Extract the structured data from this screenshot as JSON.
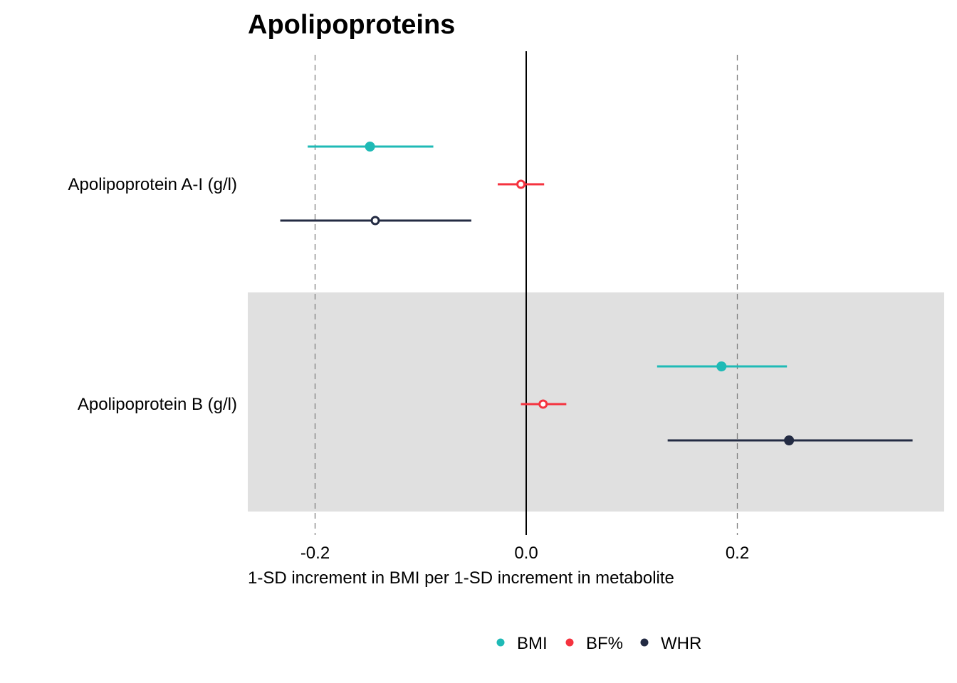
{
  "chart_data": {
    "type": "forest",
    "title": "Apolipoproteins",
    "xlabel": "1-SD increment in BMI per 1-SD increment in metabolite",
    "ylabel": "",
    "xlim": [
      -0.265,
      0.395
    ],
    "x_ticks": [
      -0.2,
      0.0,
      0.2
    ],
    "x_tick_labels": [
      "-0.2",
      "0.0",
      "0.2"
    ],
    "reference_line": 0.0,
    "dashed_lines": [
      -0.2,
      0.2
    ],
    "grid": false,
    "legend_position": "bottom",
    "categories": [
      "Apolipoprotein A-I (g/l)",
      "Apolipoprotein B (g/l)"
    ],
    "shaded_category": "Apolipoprotein B (g/l)",
    "series": [
      {
        "name": "BMI",
        "color": "#1fbab6",
        "points": [
          {
            "category": "Apolipoprotein A-I (g/l)",
            "estimate": -0.148,
            "lower": -0.207,
            "upper": -0.088,
            "filled": true
          },
          {
            "category": "Apolipoprotein B (g/l)",
            "estimate": 0.185,
            "lower": 0.124,
            "upper": 0.247,
            "filled": true
          }
        ]
      },
      {
        "name": "BF%",
        "color": "#f5333f",
        "points": [
          {
            "category": "Apolipoprotein A-I (g/l)",
            "estimate": -0.005,
            "lower": -0.027,
            "upper": 0.017,
            "filled": false
          },
          {
            "category": "Apolipoprotein B (g/l)",
            "estimate": 0.016,
            "lower": -0.005,
            "upper": 0.038,
            "filled": false
          }
        ]
      },
      {
        "name": "WHR",
        "color": "#232b43",
        "points": [
          {
            "category": "Apolipoprotein A-I (g/l)",
            "estimate": -0.143,
            "lower": -0.233,
            "upper": -0.052,
            "filled": false
          },
          {
            "category": "Apolipoprotein B (g/l)",
            "estimate": 0.249,
            "lower": 0.134,
            "upper": 0.366,
            "filled": true
          }
        ]
      }
    ]
  }
}
